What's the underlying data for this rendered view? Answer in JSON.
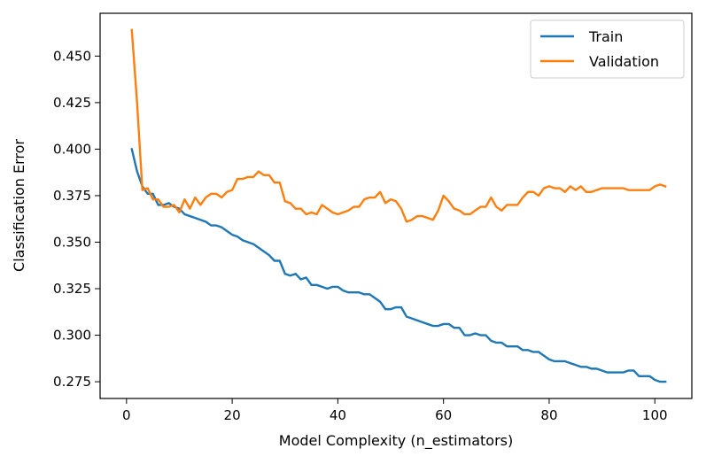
{
  "chart_data": {
    "type": "line",
    "title": "",
    "xlabel": "Model Complexity (n_estimators)",
    "ylabel": "Classification Error",
    "xlim": [
      -5,
      107
    ],
    "ylim": [
      0.266,
      0.473
    ],
    "xticks": [
      0,
      20,
      40,
      60,
      80,
      100
    ],
    "yticks": [
      0.275,
      0.3,
      0.325,
      0.35,
      0.375,
      0.4,
      0.425,
      0.45
    ],
    "ytick_labels": [
      "0.275",
      "0.300",
      "0.325",
      "0.350",
      "0.375",
      "0.400",
      "0.425",
      "0.450"
    ],
    "xtick_labels": [
      "0",
      "20",
      "40",
      "60",
      "80",
      "100"
    ],
    "grid": false,
    "legend_position": "top-right",
    "x": [
      1,
      2,
      3,
      4,
      5,
      6,
      7,
      8,
      9,
      10,
      11,
      12,
      13,
      14,
      15,
      16,
      17,
      18,
      19,
      20,
      21,
      22,
      23,
      24,
      25,
      26,
      27,
      28,
      29,
      30,
      31,
      32,
      33,
      34,
      35,
      36,
      37,
      38,
      39,
      40,
      41,
      42,
      43,
      44,
      45,
      46,
      47,
      48,
      49,
      50,
      51,
      52,
      53,
      54,
      55,
      56,
      57,
      58,
      59,
      60,
      61,
      62,
      63,
      64,
      65,
      66,
      67,
      68,
      69,
      70,
      71,
      72,
      73,
      74,
      75,
      76,
      77,
      78,
      79,
      80,
      81,
      82,
      83,
      84,
      85,
      86,
      87,
      88,
      89,
      90,
      91,
      92,
      93,
      94,
      95,
      96,
      97,
      98,
      99,
      100,
      101,
      102
    ],
    "series": [
      {
        "name": "Train",
        "color": "#1f77b4",
        "values": [
          0.4,
          0.388,
          0.38,
          0.376,
          0.376,
          0.37,
          0.37,
          0.371,
          0.369,
          0.368,
          0.365,
          0.364,
          0.363,
          0.362,
          0.361,
          0.359,
          0.359,
          0.358,
          0.356,
          0.354,
          0.353,
          0.351,
          0.35,
          0.349,
          0.347,
          0.345,
          0.343,
          0.34,
          0.34,
          0.333,
          0.332,
          0.333,
          0.33,
          0.331,
          0.327,
          0.327,
          0.326,
          0.325,
          0.326,
          0.326,
          0.324,
          0.323,
          0.323,
          0.323,
          0.322,
          0.322,
          0.32,
          0.318,
          0.314,
          0.314,
          0.315,
          0.315,
          0.31,
          0.309,
          0.308,
          0.307,
          0.306,
          0.305,
          0.305,
          0.306,
          0.306,
          0.304,
          0.304,
          0.3,
          0.3,
          0.301,
          0.3,
          0.3,
          0.297,
          0.296,
          0.296,
          0.294,
          0.294,
          0.294,
          0.292,
          0.292,
          0.291,
          0.291,
          0.289,
          0.287,
          0.286,
          0.286,
          0.286,
          0.285,
          0.284,
          0.283,
          0.283,
          0.282,
          0.282,
          0.281,
          0.28,
          0.28,
          0.28,
          0.28,
          0.281,
          0.281,
          0.278,
          0.278,
          0.278,
          0.276,
          0.275,
          0.275
        ]
      },
      {
        "name": "Validation",
        "color": "#ff7f0e",
        "values": [
          0.464,
          0.425,
          0.378,
          0.379,
          0.373,
          0.373,
          0.369,
          0.369,
          0.37,
          0.366,
          0.373,
          0.368,
          0.374,
          0.37,
          0.374,
          0.376,
          0.376,
          0.374,
          0.377,
          0.378,
          0.384,
          0.384,
          0.385,
          0.385,
          0.388,
          0.386,
          0.386,
          0.382,
          0.382,
          0.372,
          0.371,
          0.368,
          0.368,
          0.365,
          0.366,
          0.365,
          0.37,
          0.368,
          0.366,
          0.365,
          0.366,
          0.367,
          0.369,
          0.369,
          0.373,
          0.374,
          0.374,
          0.377,
          0.371,
          0.373,
          0.372,
          0.368,
          0.361,
          0.362,
          0.364,
          0.364,
          0.363,
          0.362,
          0.367,
          0.375,
          0.372,
          0.368,
          0.367,
          0.365,
          0.365,
          0.367,
          0.369,
          0.369,
          0.374,
          0.369,
          0.367,
          0.37,
          0.37,
          0.37,
          0.374,
          0.377,
          0.377,
          0.375,
          0.379,
          0.38,
          0.379,
          0.379,
          0.377,
          0.38,
          0.378,
          0.38,
          0.377,
          0.377,
          0.378,
          0.379,
          0.379,
          0.379,
          0.379,
          0.379,
          0.378,
          0.378,
          0.378,
          0.378,
          0.378,
          0.38,
          0.381,
          0.38
        ]
      }
    ]
  }
}
